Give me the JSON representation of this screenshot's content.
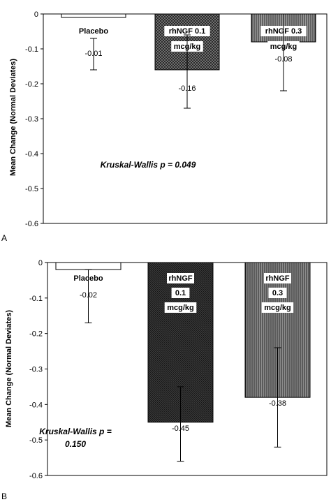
{
  "chart_data": [
    {
      "type": "bar",
      "panel_label": "A",
      "ylabel": "Mean Change (Normal Deviates)",
      "ylim": [
        -0.6,
        0
      ],
      "yticks": [
        "0",
        "-0.1",
        "-0.2",
        "-0.3",
        "-0.4",
        "-0.5",
        "-0.6"
      ],
      "categories": [
        "Placebo",
        "rhNGF 0.1 mcg/kg",
        "rhNGF 0.3 mcg/kg"
      ],
      "category_label_lines": [
        [
          "Placebo"
        ],
        [
          "rhNGF 0.1",
          "mcg/kg"
        ],
        [
          "rhNGF 0.3",
          "mcg/kg"
        ]
      ],
      "values": [
        -0.01,
        -0.16,
        -0.08
      ],
      "value_labels": [
        "-0.01",
        "-0.16",
        "-0.08"
      ],
      "error_low": [
        -0.16,
        -0.27,
        -0.22
      ],
      "error_high": [
        -0.07,
        -0.06,
        0.0
      ],
      "bar_fills": [
        "#ffffff",
        "#808080",
        "#9a9a9a"
      ],
      "annotation_lines": [
        "Kruskal-Wallis p = 0.049"
      ]
    },
    {
      "type": "bar",
      "panel_label": "B",
      "ylabel": "Mean Change (Normal Deviates)",
      "ylim": [
        -0.6,
        0
      ],
      "yticks": [
        "0",
        "-0.1",
        "-0.2",
        "-0.3",
        "-0.4",
        "-0.5",
        "-0.6"
      ],
      "categories": [
        "Placebo",
        "rhNGF 0.1 mcg/kg",
        "rhNGF 0.3 mcg/kg"
      ],
      "category_label_lines": [
        [
          "Placebo"
        ],
        [
          "rhNGF",
          "0.1",
          "mcg/kg"
        ],
        [
          "rhNGF",
          "0.3",
          "mcg/kg"
        ]
      ],
      "values": [
        -0.02,
        -0.45,
        -0.38
      ],
      "value_labels": [
        "-0.02",
        "-0.45",
        "-0.38"
      ],
      "error_low": [
        -0.17,
        -0.56,
        -0.52
      ],
      "error_high": [
        -0.02,
        -0.35,
        -0.24
      ],
      "bar_fills": [
        "#ffffff",
        "#3a3a3a",
        "#8c8c8c"
      ],
      "annotation_lines": [
        "Kruskal-Wallis p =",
        "0.150"
      ]
    }
  ]
}
